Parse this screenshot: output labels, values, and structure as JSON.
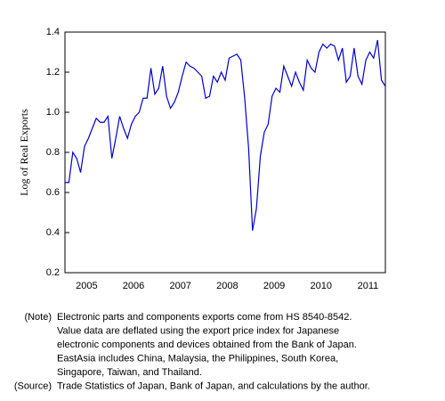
{
  "chart_data": {
    "type": "line",
    "y_label": "Log of Real Exports",
    "categories": [
      null,
      null,
      null,
      null,
      null,
      null,
      "2005",
      null,
      null,
      null,
      null,
      null,
      null,
      null,
      null,
      null,
      null,
      null,
      "2006",
      null,
      null,
      null,
      null,
      null,
      null,
      null,
      null,
      null,
      null,
      null,
      "2007",
      null,
      null,
      null,
      null,
      null,
      null,
      null,
      null,
      null,
      null,
      null,
      "2008",
      null,
      null,
      null,
      null,
      null,
      null,
      null,
      null,
      null,
      null,
      null,
      "2009",
      null,
      null,
      null,
      null,
      null,
      null,
      null,
      null,
      null,
      null,
      null,
      "2010",
      null,
      null,
      null,
      null,
      null,
      null,
      null,
      null,
      null,
      null,
      null,
      "2011",
      null,
      null,
      null,
      null
    ],
    "series": [
      {
        "color": "#0000cc",
        "values": [
          0.65,
          0.65,
          0.8,
          0.77,
          0.7,
          0.83,
          0.87,
          0.92,
          0.97,
          0.95,
          0.95,
          0.98,
          0.77,
          0.87,
          0.98,
          0.92,
          0.87,
          0.94,
          0.98,
          1.0,
          1.07,
          1.07,
          1.22,
          1.09,
          1.12,
          1.23,
          1.08,
          1.02,
          1.05,
          1.1,
          1.18,
          1.25,
          1.23,
          1.22,
          1.2,
          1.18,
          1.07,
          1.08,
          1.18,
          1.15,
          1.2,
          1.16,
          1.27,
          1.28,
          1.29,
          1.26,
          1.07,
          0.82,
          0.41,
          0.52,
          0.78,
          0.9,
          0.94,
          1.08,
          1.12,
          1.1,
          1.23,
          1.18,
          1.13,
          1.2,
          1.15,
          1.11,
          1.26,
          1.22,
          1.2,
          1.3,
          1.34,
          1.32,
          1.34,
          1.33,
          1.26,
          1.32,
          1.15,
          1.18,
          1.32,
          1.18,
          1.14,
          1.26,
          1.3,
          1.27,
          1.36,
          1.16,
          1.13
        ]
      }
    ],
    "ylim": [
      0.2,
      1.4
    ],
    "yticks": [
      0.2,
      0.4,
      0.6,
      0.8,
      {
        "value": 1,
        "label": "1.0"
      },
      1.2,
      1.4
    ],
    "grid": false
  },
  "notes": [
    {
      "label": "(Note)",
      "lines": [
        "Electronic parts and components exports come from HS 8540-8542.",
        "Value data are deflated using the export price index for Japanese",
        "electronic components and devices obtained from the Bank of Japan.",
        "EastAsia includes China, Malaysia, the Philippines, South Korea,",
        "Singapore, Taiwan, and Thailand."
      ]
    },
    {
      "label": "(Source)",
      "lines": [
        "Trade Statistics of Japan, Bank of Japan, and calculations by the author."
      ]
    }
  ]
}
